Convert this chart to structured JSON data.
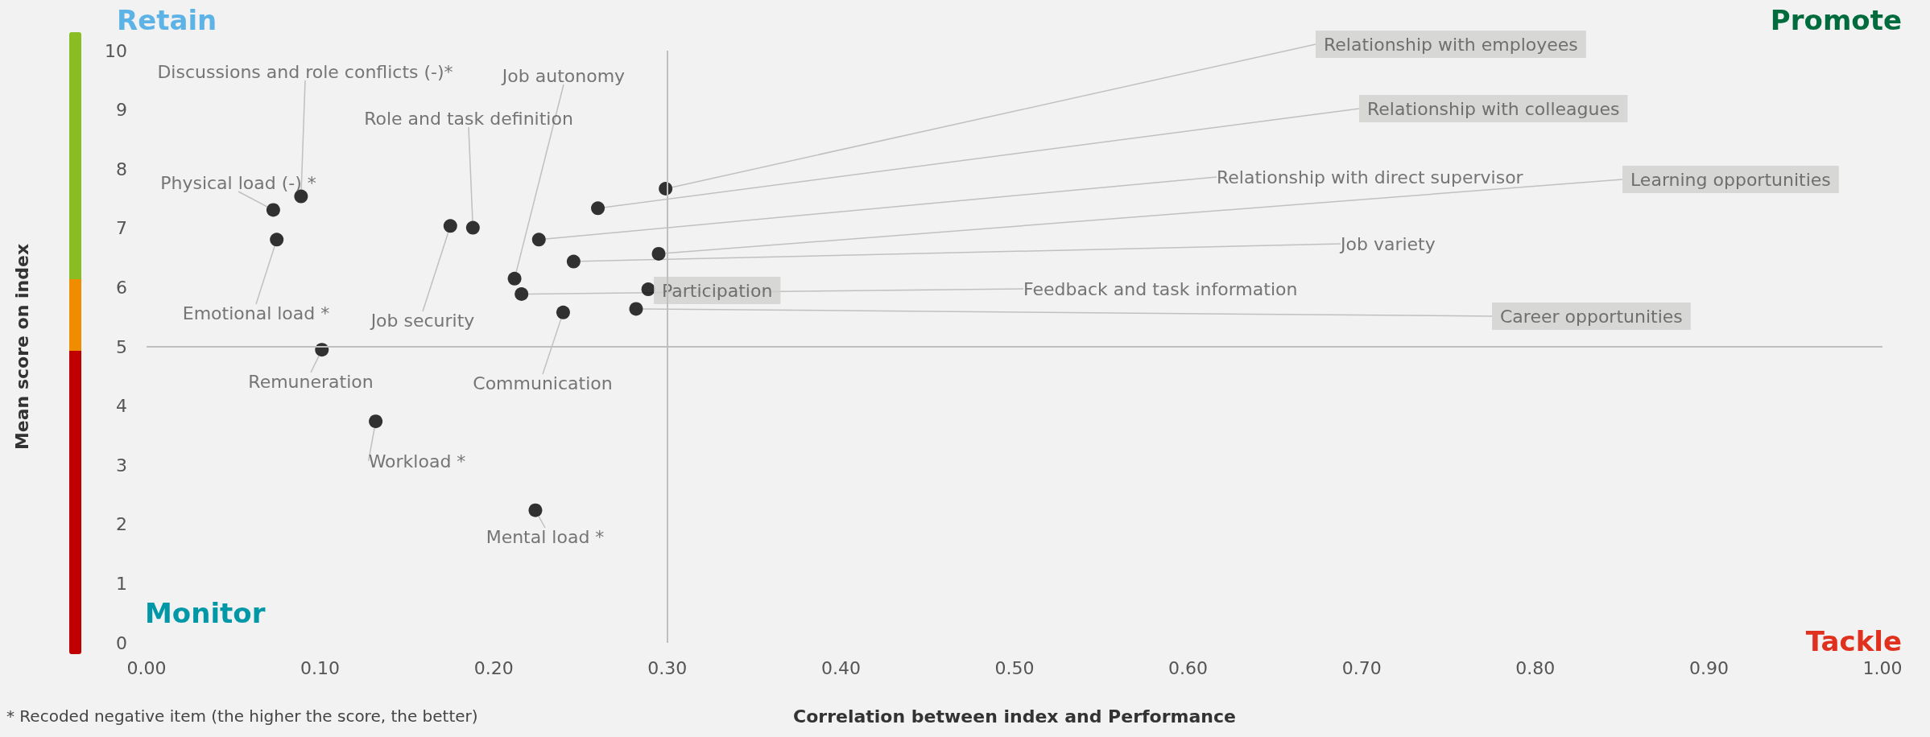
{
  "chart_data": {
    "type": "scatter",
    "xlabel": "Correlation between index and Performance",
    "ylabel": "Mean score on index",
    "x": [
      0.089,
      0.073,
      0.075,
      0.175,
      0.188,
      0.212,
      0.216,
      0.226,
      0.24,
      0.246,
      0.26,
      0.282,
      0.289,
      0.295,
      0.299,
      0.101,
      0.132,
      0.224
    ],
    "values": [
      7.54,
      7.31,
      6.81,
      7.04,
      7.01,
      6.15,
      5.89,
      6.81,
      5.58,
      6.44,
      7.34,
      5.64,
      5.97,
      6.57,
      7.67,
      4.95,
      3.74,
      2.24
    ],
    "value_labels": [
      "Discussions and role conflicts (-)*",
      "Physical load (-) *",
      "Emotional load *",
      "Job security",
      "Role and task definition",
      "Job autonomy",
      "Feedback and task information",
      "Relationship with direct supervisor",
      "Communication",
      "Job variety",
      "Relationship with colleagues",
      "Career opportunities",
      "Participation",
      "Learning opportunities",
      "Relationship with employees",
      "Remuneration",
      "Workload *",
      "Mental load *"
    ],
    "color": "#000000",
    "marker": "circle",
    "grid": false,
    "xlim": [
      0,
      1
    ],
    "xticks": [
      {
        "value": 0,
        "label": "0.00"
      },
      {
        "value": 0.1,
        "label": "0.10"
      },
      {
        "value": 0.2,
        "label": "0.20"
      },
      {
        "value": 0.3,
        "label": "0.30"
      },
      {
        "value": 0.4,
        "label": "0.40"
      },
      {
        "value": 0.5,
        "label": "0.50"
      },
      {
        "value": 0.6,
        "label": "0.60"
      },
      {
        "value": 0.7,
        "label": "0.70"
      },
      {
        "value": 0.8,
        "label": "0.80"
      },
      {
        "value": 0.9,
        "label": "0.90"
      },
      {
        "value": 1,
        "label": "1.00"
      }
    ],
    "ylim": [
      0,
      10
    ],
    "yticks": [
      0,
      1,
      2,
      3,
      4,
      5,
      6,
      7,
      8,
      9,
      10
    ],
    "ref_lines": [
      {
        "axis": "x",
        "value": 0.3,
        "color": "#bfbfbf"
      },
      {
        "axis": "y",
        "value": 5,
        "color": "#bfbfbf"
      }
    ],
    "annotations": [
      "Retain",
      "Promote",
      "Monitor",
      "Tackle",
      "* Recoded negative item (the higher the score, the better)"
    ]
  }
}
